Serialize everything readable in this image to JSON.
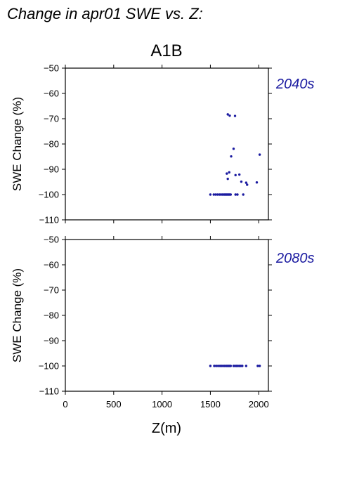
{
  "title": "Change in apr01 SWE vs. Z:",
  "scenario": "A1B",
  "x_axis_label": "Z(m)",
  "colors": {
    "points": "#1a1aa0",
    "period_label": "#1a1aa0"
  },
  "chart_data": [
    {
      "type": "scatter",
      "period": "2040s",
      "ylabel": "SWE Change (%)",
      "xlabel": "Z(m)",
      "xlim": [
        0,
        2100
      ],
      "ylim": [
        -110,
        -50
      ],
      "xticks": [
        0,
        500,
        1000,
        1500,
        2000
      ],
      "yticks": [
        -50,
        -60,
        -70,
        -80,
        -90,
        -100,
        -110
      ],
      "grid": false,
      "points": [
        {
          "x": 1680,
          "y": -68.3
        },
        {
          "x": 1700,
          "y": -68.8
        },
        {
          "x": 1755,
          "y": -68.9
        },
        {
          "x": 1740,
          "y": -81.9
        },
        {
          "x": 1715,
          "y": -84.9
        },
        {
          "x": 2010,
          "y": -84.2
        },
        {
          "x": 1670,
          "y": -91.7
        },
        {
          "x": 1695,
          "y": -91.2
        },
        {
          "x": 1760,
          "y": -92.3
        },
        {
          "x": 1800,
          "y": -92.1
        },
        {
          "x": 1680,
          "y": -93.8
        },
        {
          "x": 1820,
          "y": -94.9
        },
        {
          "x": 1870,
          "y": -95.3
        },
        {
          "x": 1880,
          "y": -96.1
        },
        {
          "x": 1980,
          "y": -95.2
        },
        {
          "x": 1500,
          "y": -100
        },
        {
          "x": 1535,
          "y": -100
        },
        {
          "x": 1555,
          "y": -100
        },
        {
          "x": 1575,
          "y": -100
        },
        {
          "x": 1595,
          "y": -100
        },
        {
          "x": 1610,
          "y": -100
        },
        {
          "x": 1625,
          "y": -100
        },
        {
          "x": 1640,
          "y": -100
        },
        {
          "x": 1650,
          "y": -100
        },
        {
          "x": 1660,
          "y": -100
        },
        {
          "x": 1670,
          "y": -100
        },
        {
          "x": 1680,
          "y": -100
        },
        {
          "x": 1690,
          "y": -100
        },
        {
          "x": 1700,
          "y": -100
        },
        {
          "x": 1710,
          "y": -100
        },
        {
          "x": 1760,
          "y": -100
        },
        {
          "x": 1780,
          "y": -100
        },
        {
          "x": 1840,
          "y": -100
        }
      ]
    },
    {
      "type": "scatter",
      "period": "2080s",
      "ylabel": "SWE Change (%)",
      "xlabel": "Z(m)",
      "xlim": [
        0,
        2100
      ],
      "ylim": [
        -110,
        -50
      ],
      "xticks": [
        0,
        500,
        1000,
        1500,
        2000
      ],
      "yticks": [
        -50,
        -60,
        -70,
        -80,
        -90,
        -100,
        -110
      ],
      "grid": false,
      "points": [
        {
          "x": 1500,
          "y": -100
        },
        {
          "x": 1540,
          "y": -100
        },
        {
          "x": 1560,
          "y": -100
        },
        {
          "x": 1580,
          "y": -100
        },
        {
          "x": 1600,
          "y": -100
        },
        {
          "x": 1615,
          "y": -100
        },
        {
          "x": 1630,
          "y": -100
        },
        {
          "x": 1645,
          "y": -100
        },
        {
          "x": 1660,
          "y": -100
        },
        {
          "x": 1670,
          "y": -100
        },
        {
          "x": 1680,
          "y": -100
        },
        {
          "x": 1690,
          "y": -100
        },
        {
          "x": 1700,
          "y": -100
        },
        {
          "x": 1710,
          "y": -100
        },
        {
          "x": 1740,
          "y": -100
        },
        {
          "x": 1755,
          "y": -100
        },
        {
          "x": 1770,
          "y": -100
        },
        {
          "x": 1785,
          "y": -100
        },
        {
          "x": 1800,
          "y": -100
        },
        {
          "x": 1815,
          "y": -100
        },
        {
          "x": 1830,
          "y": -100
        },
        {
          "x": 1870,
          "y": -100
        },
        {
          "x": 1990,
          "y": -100
        },
        {
          "x": 2010,
          "y": -100
        }
      ]
    }
  ]
}
